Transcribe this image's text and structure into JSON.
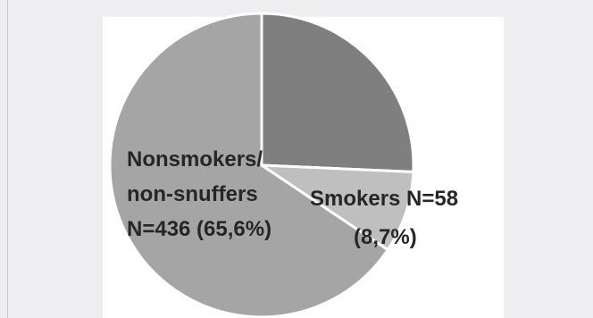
{
  "chart_data": {
    "type": "pie",
    "slices": [
      {
        "key": "other",
        "value": 25.7,
        "color": "#7f7f7f",
        "label_lines": []
      },
      {
        "key": "smokers",
        "value": 8.7,
        "color": "#bfbfbf",
        "label_lines": [
          "Smokers N=58",
          "(8,7%)"
        ]
      },
      {
        "key": "nonsmokers",
        "value": 65.6,
        "color": "#a5a5a5",
        "label_lines": [
          "Nonsmokers/",
          "non-snuffers",
          "N=436 (65,6%)"
        ]
      }
    ],
    "start_angle": "12 o'clock, clockwise",
    "slice_border_color": "#ffffff"
  },
  "page": {
    "background": "#eeeef1",
    "card_background": "#ffffff"
  }
}
